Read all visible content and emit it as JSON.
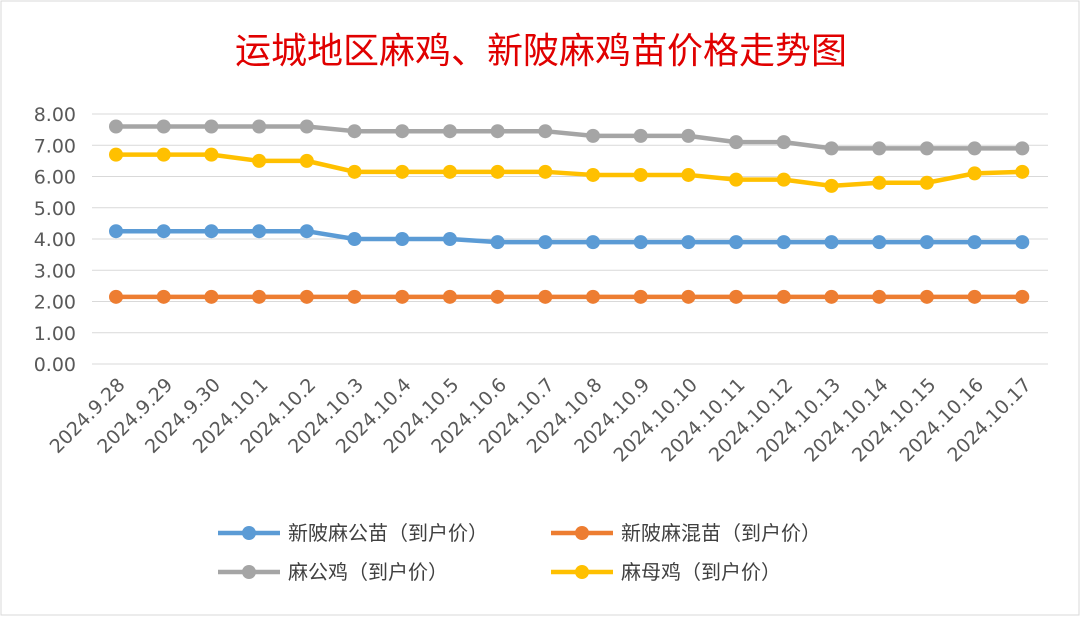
{
  "chart_data": {
    "type": "line",
    "title": "运城地区麻鸡、新陂麻鸡苗价格走势图",
    "xlabel": "",
    "ylabel": "",
    "ylim": [
      0,
      8
    ],
    "yticks": [
      "0.00",
      "1.00",
      "2.00",
      "3.00",
      "4.00",
      "5.00",
      "6.00",
      "7.00",
      "8.00"
    ],
    "grid": true,
    "legend_position": "bottom",
    "categories": [
      "2024.9.28",
      "2024.9.29",
      "2024.9.30",
      "2024.10.1",
      "2024.10.2",
      "2024.10.3",
      "2024.10.4",
      "2024.10.5",
      "2024.10.6",
      "2024.10.7",
      "2024.10.8",
      "2024.10.9",
      "2024.10.10",
      "2024.10.11",
      "2024.10.12",
      "2024.10.13",
      "2024.10.14",
      "2024.10.15",
      "2024.10.16",
      "2024.10.17"
    ],
    "series": [
      {
        "name": "新陂麻公苗（到户价）",
        "color": "#5b9bd5",
        "values": [
          4.25,
          4.25,
          4.25,
          4.25,
          4.25,
          4.0,
          4.0,
          4.0,
          3.9,
          3.9,
          3.9,
          3.9,
          3.9,
          3.9,
          3.9,
          3.9,
          3.9,
          3.9,
          3.9,
          3.9
        ]
      },
      {
        "name": "新陂麻混苗（到户价）",
        "color": "#ed7d31",
        "values": [
          2.15,
          2.15,
          2.15,
          2.15,
          2.15,
          2.15,
          2.15,
          2.15,
          2.15,
          2.15,
          2.15,
          2.15,
          2.15,
          2.15,
          2.15,
          2.15,
          2.15,
          2.15,
          2.15,
          2.15
        ]
      },
      {
        "name": "麻公鸡（到户价）",
        "color": "#a5a5a5",
        "values": [
          7.6,
          7.6,
          7.6,
          7.6,
          7.6,
          7.45,
          7.45,
          7.45,
          7.45,
          7.45,
          7.3,
          7.3,
          7.3,
          7.1,
          7.1,
          6.9,
          6.9,
          6.9,
          6.9,
          6.9
        ]
      },
      {
        "name": "麻母鸡（到户价）",
        "color": "#ffc000",
        "values": [
          6.7,
          6.7,
          6.7,
          6.5,
          6.5,
          6.15,
          6.15,
          6.15,
          6.15,
          6.15,
          6.05,
          6.05,
          6.05,
          5.9,
          5.9,
          5.7,
          5.8,
          5.8,
          6.1,
          6.15
        ]
      }
    ]
  }
}
